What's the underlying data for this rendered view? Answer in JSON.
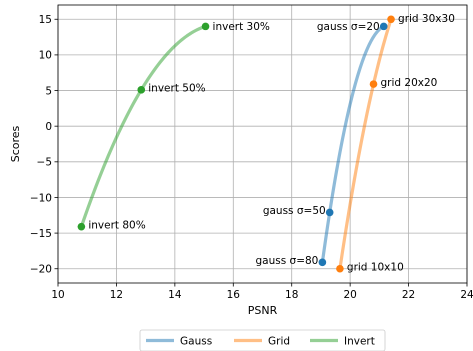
{
  "chart_data": {
    "type": "line",
    "xlabel": "PSNR",
    "ylabel": "Scores",
    "xlim": [
      10,
      24
    ],
    "ylim": [
      -22,
      17
    ],
    "x_ticks": [
      10,
      12,
      14,
      16,
      18,
      20,
      22,
      24
    ],
    "y_ticks": [
      -20,
      -15,
      -10,
      -5,
      0,
      5,
      10,
      15
    ],
    "y_tick_labels": [
      "−20",
      "−15",
      "−10",
      "−5",
      "0",
      "5",
      "10",
      "15"
    ],
    "grid": true,
    "legend_position": "bottom-center",
    "series": [
      {
        "name": "Gauss",
        "color": "#1f77b4",
        "points": [
          {
            "x": 19.05,
            "y": -19.1,
            "label": "gauss σ=80"
          },
          {
            "x": 19.3,
            "y": -12.1,
            "label": "gauss σ=50"
          },
          {
            "x": 21.15,
            "y": 14.0,
            "label": "gauss σ=20"
          }
        ]
      },
      {
        "name": "Grid",
        "color": "#ff7f0e",
        "points": [
          {
            "x": 19.65,
            "y": -20.0,
            "label": "grid 10x10"
          },
          {
            "x": 20.8,
            "y": 5.9,
            "label": "grid 20x20"
          },
          {
            "x": 21.4,
            "y": 15.0,
            "label": "grid 30x30"
          }
        ]
      },
      {
        "name": "Invert",
        "color": "#2ca02c",
        "points": [
          {
            "x": 10.8,
            "y": -14.1,
            "label": "invert 80%"
          },
          {
            "x": 12.85,
            "y": 5.1,
            "label": "invert 50%"
          },
          {
            "x": 15.05,
            "y": 14.0,
            "label": "invert 30%"
          }
        ]
      }
    ]
  }
}
